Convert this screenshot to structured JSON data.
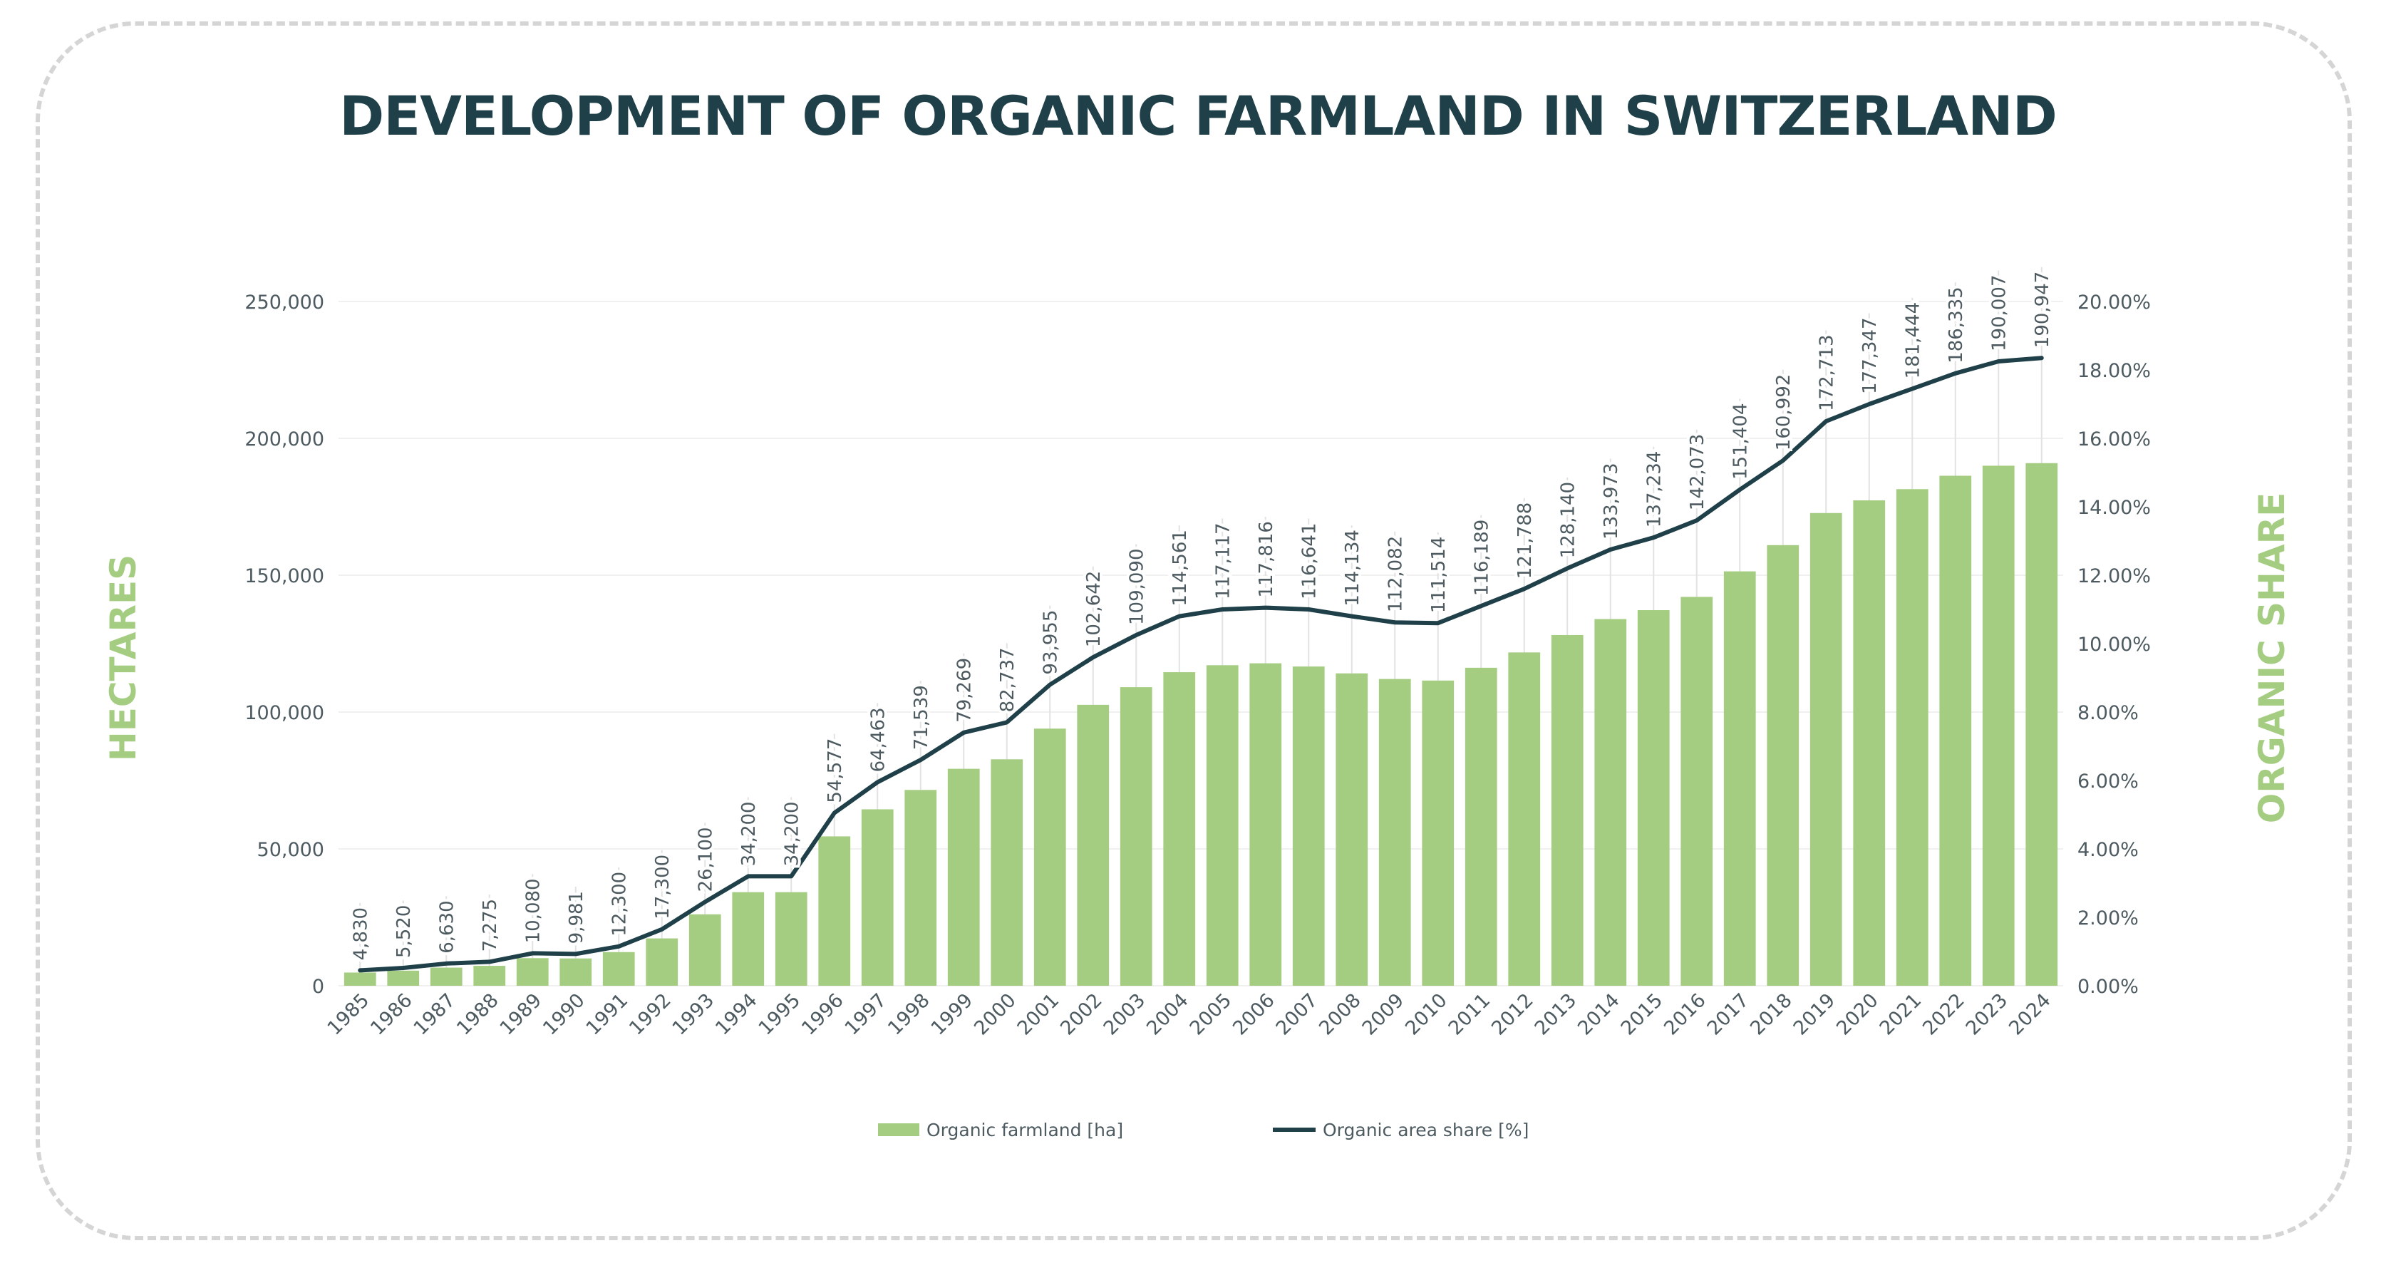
{
  "title": "DEVELOPMENT OF ORGANIC FARMLAND IN SWITZERLAND",
  "chart_data": {
    "type": "bar",
    "categories": [
      "1985",
      "1986",
      "1987",
      "1988",
      "1989",
      "1990",
      "1991",
      "1992",
      "1993",
      "1994",
      "1995",
      "1996",
      "1997",
      "1998",
      "1999",
      "2000",
      "2001",
      "2002",
      "2003",
      "2004",
      "2005",
      "2006",
      "2007",
      "2008",
      "2009",
      "2010",
      "2011",
      "2012",
      "2013",
      "2014",
      "2015",
      "2016",
      "2017",
      "2018",
      "2019",
      "2020",
      "2021",
      "2022",
      "2023",
      "2024"
    ],
    "ylabel": "HECTARES",
    "y2label": "ORGANIC SHARE",
    "ylim": [
      0,
      250000
    ],
    "y2lim": [
      0,
      20
    ],
    "yticks": [
      0,
      50000,
      100000,
      150000,
      200000,
      250000
    ],
    "ytick_labels": [
      "0",
      "50,000",
      "100,000",
      "150,000",
      "200,000",
      "250,000"
    ],
    "y2ticks": [
      0,
      2,
      4,
      6,
      8,
      10,
      12,
      14,
      16,
      18,
      20
    ],
    "y2tick_labels": [
      "0.00%",
      "2.00%",
      "4.00%",
      "6.00%",
      "8.00%",
      "10.00%",
      "12.00%",
      "14.00%",
      "16.00%",
      "18.00%",
      "20.00%"
    ],
    "grid": true,
    "legend_position": "bottom-center",
    "series": [
      {
        "name": "Organic farmland [ha]",
        "type": "bar",
        "axis": "left",
        "color": "#a5cd82",
        "values": [
          4830,
          5520,
          6630,
          7275,
          10080,
          9981,
          12300,
          17300,
          26100,
          34200,
          34200,
          54577,
          64463,
          71539,
          79269,
          82737,
          93955,
          102642,
          109090,
          114561,
          117117,
          117816,
          116641,
          114134,
          112082,
          111514,
          116189,
          121788,
          128140,
          133973,
          137234,
          142073,
          151404,
          160992,
          172713,
          177347,
          181444,
          186335,
          190007,
          190947
        ],
        "value_labels": [
          "4,830",
          "5,520",
          "6,630",
          "7,275",
          "10,080",
          "9,981",
          "12,300",
          "17,300",
          "26,100",
          "34,200",
          "34,200",
          "54,577",
          "64,463",
          "71,539",
          "79,269",
          "82,737",
          "93,955",
          "102,642",
          "109,090",
          "114,561",
          "117,117",
          "117,816",
          "116,641",
          "114,134",
          "112,082",
          "111,514",
          "116,189",
          "121,788",
          "128,140",
          "133,973",
          "137,234",
          "142,073",
          "151,404",
          "160,992",
          "172,713",
          "177,347",
          "181,444",
          "186,335",
          "190,007",
          "190,947"
        ]
      },
      {
        "name": "Organic area share [%]",
        "type": "line",
        "axis": "right",
        "color": "#1f4049",
        "values": [
          0.45,
          0.52,
          0.65,
          0.7,
          0.95,
          0.93,
          1.15,
          1.65,
          2.45,
          3.2,
          3.2,
          5.05,
          5.95,
          6.6,
          7.4,
          7.7,
          8.8,
          9.6,
          10.25,
          10.8,
          11.0,
          11.05,
          11.0,
          10.8,
          10.62,
          10.6,
          11.1,
          11.6,
          12.2,
          12.75,
          13.1,
          13.6,
          14.5,
          15.35,
          16.5,
          17.0,
          17.45,
          17.9,
          18.25,
          18.35
        ]
      }
    ]
  }
}
